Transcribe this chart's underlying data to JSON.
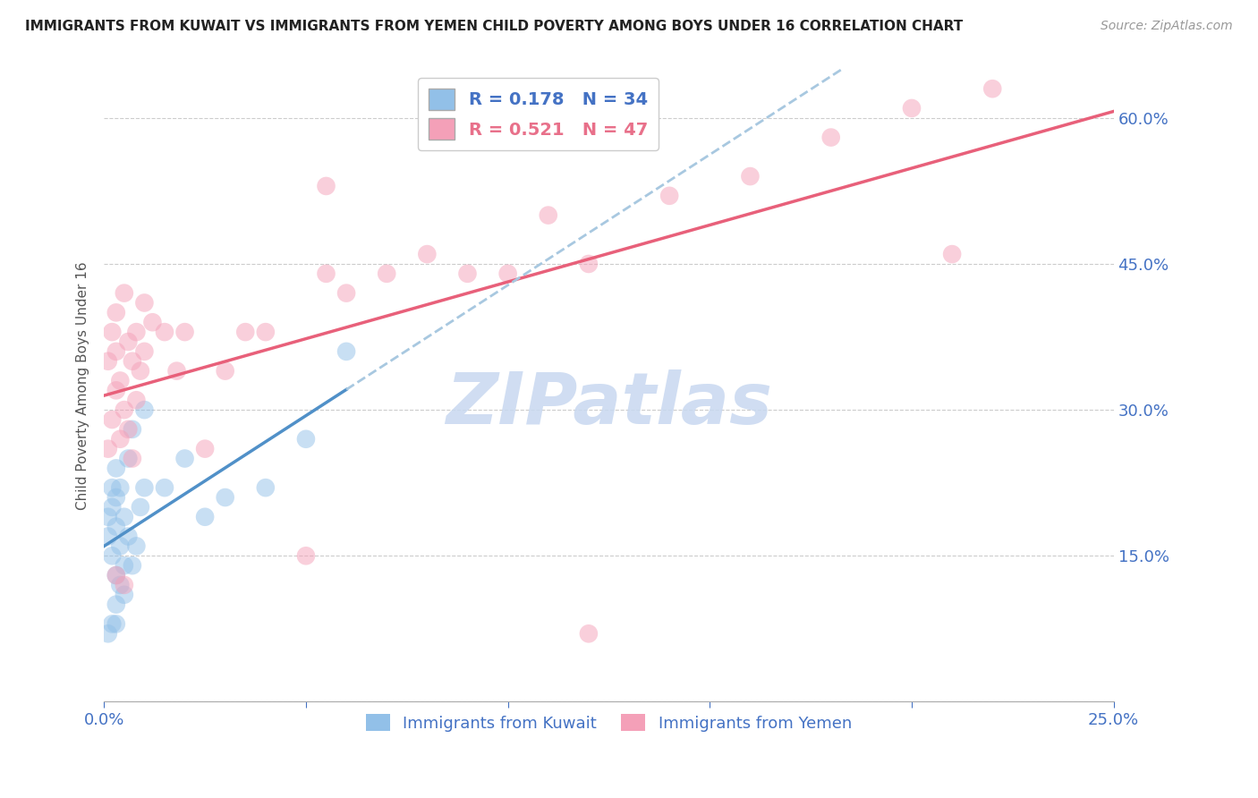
{
  "title": "IMMIGRANTS FROM KUWAIT VS IMMIGRANTS FROM YEMEN CHILD POVERTY AMONG BOYS UNDER 16 CORRELATION CHART",
  "source": "Source: ZipAtlas.com",
  "ylabel": "Child Poverty Among Boys Under 16",
  "xlim": [
    0.0,
    0.25
  ],
  "ylim": [
    0.0,
    0.65
  ],
  "xticks": [
    0.0,
    0.05,
    0.1,
    0.15,
    0.2,
    0.25
  ],
  "yticks": [
    0.0,
    0.15,
    0.3,
    0.45,
    0.6
  ],
  "xtick_labels": [
    "0.0%",
    "",
    "",
    "",
    "",
    "25.0%"
  ],
  "ytick_labels": [
    "",
    "15.0%",
    "30.0%",
    "45.0%",
    "60.0%"
  ],
  "kuwait_R": 0.178,
  "kuwait_N": 34,
  "yemen_R": 0.521,
  "yemen_N": 47,
  "kuwait_color": "#92C0E8",
  "yemen_color": "#F4A0B8",
  "kuwait_line_color": "#5090C8",
  "yemen_line_color": "#E8607A",
  "kuwait_dash_color": "#A8C8E0",
  "watermark": "ZIPatlas",
  "watermark_color": "#C8D8F0",
  "kuwait_x": [
    0.001,
    0.001,
    0.002,
    0.002,
    0.002,
    0.002,
    0.003,
    0.003,
    0.003,
    0.003,
    0.003,
    0.004,
    0.004,
    0.004,
    0.005,
    0.005,
    0.005,
    0.006,
    0.006,
    0.007,
    0.007,
    0.008,
    0.009,
    0.01,
    0.01,
    0.015,
    0.02,
    0.025,
    0.03,
    0.04,
    0.05,
    0.06,
    0.001,
    0.003
  ],
  "kuwait_y": [
    0.17,
    0.19,
    0.08,
    0.15,
    0.2,
    0.22,
    0.1,
    0.13,
    0.18,
    0.21,
    0.24,
    0.12,
    0.16,
    0.22,
    0.11,
    0.14,
    0.19,
    0.17,
    0.25,
    0.14,
    0.28,
    0.16,
    0.2,
    0.22,
    0.3,
    0.22,
    0.25,
    0.19,
    0.21,
    0.22,
    0.27,
    0.36,
    0.07,
    0.08
  ],
  "yemen_x": [
    0.001,
    0.001,
    0.002,
    0.002,
    0.003,
    0.003,
    0.003,
    0.004,
    0.004,
    0.005,
    0.005,
    0.006,
    0.006,
    0.007,
    0.007,
    0.008,
    0.008,
    0.009,
    0.01,
    0.01,
    0.012,
    0.015,
    0.018,
    0.02,
    0.025,
    0.03,
    0.035,
    0.04,
    0.05,
    0.055,
    0.06,
    0.07,
    0.08,
    0.09,
    0.1,
    0.11,
    0.12,
    0.14,
    0.16,
    0.18,
    0.2,
    0.21,
    0.22,
    0.003,
    0.005,
    0.055,
    0.12
  ],
  "yemen_y": [
    0.26,
    0.35,
    0.29,
    0.38,
    0.32,
    0.36,
    0.4,
    0.27,
    0.33,
    0.3,
    0.42,
    0.28,
    0.37,
    0.25,
    0.35,
    0.31,
    0.38,
    0.34,
    0.36,
    0.41,
    0.39,
    0.38,
    0.34,
    0.38,
    0.26,
    0.34,
    0.38,
    0.38,
    0.15,
    0.44,
    0.42,
    0.44,
    0.46,
    0.44,
    0.44,
    0.5,
    0.45,
    0.52,
    0.54,
    0.58,
    0.61,
    0.46,
    0.63,
    0.13,
    0.12,
    0.53,
    0.07
  ]
}
